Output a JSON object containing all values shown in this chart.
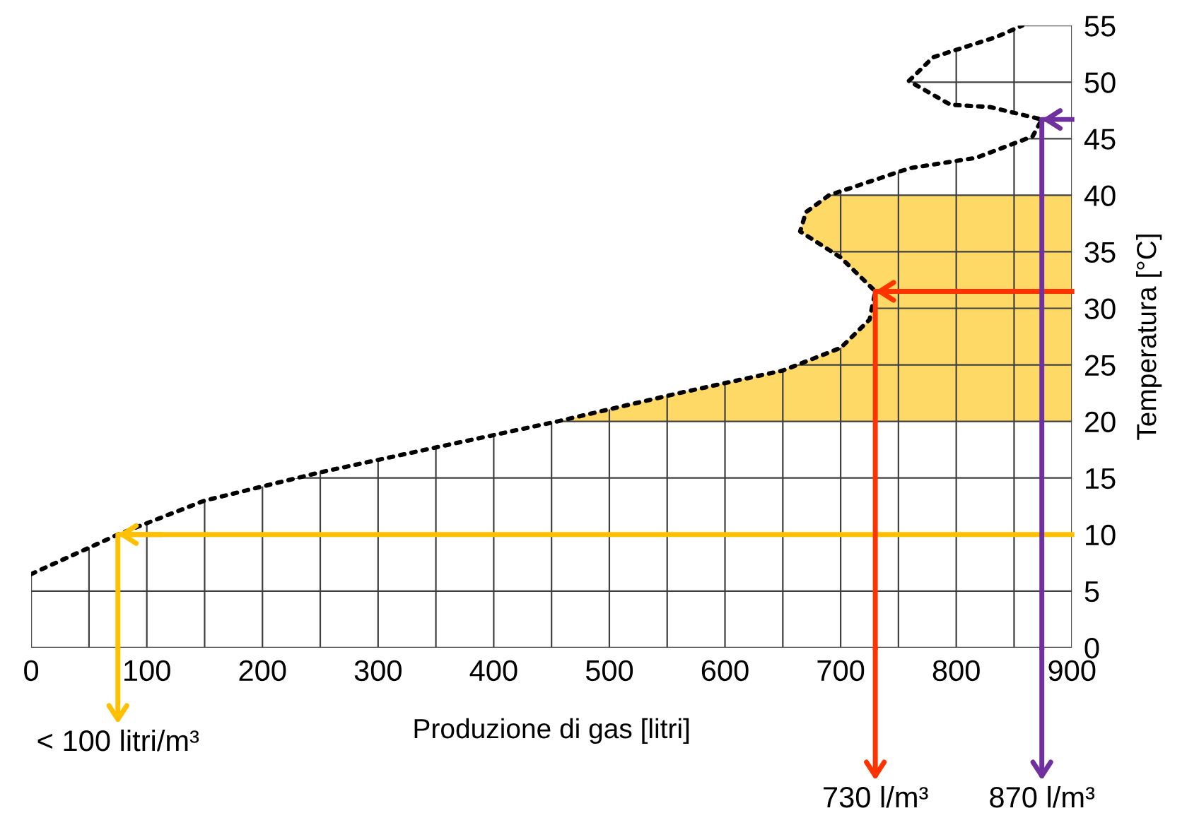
{
  "chart_data": {
    "type": "line",
    "xlabel": "Produzione di gas [litri]",
    "ylabel": "Temperatura [°C]",
    "series": [
      {
        "color": "#000000",
        "line_style": "dotted",
        "x": [
          0,
          75,
          150,
          250,
          350,
          455,
          560,
          650,
          700,
          725,
          730,
          700,
          665,
          670,
          690,
          760,
          817,
          866,
          874,
          829,
          795,
          759,
          780,
          835,
          857
        ],
        "values": [
          6.5,
          10,
          13,
          15.5,
          17.7,
          20,
          22.5,
          24.5,
          26.5,
          29,
          31.5,
          34.5,
          36.8,
          38.5,
          40,
          42.4,
          43.3,
          45.2,
          46.7,
          47.8,
          48.0,
          50.1,
          52.2,
          54,
          55
        ]
      },
      {
        "color": "#ffc000",
        "x": [
          900,
          75,
          75
        ],
        "values": [
          10,
          10,
          0
        ]
      },
      {
        "color": "#ff3300",
        "x": [
          900,
          730,
          730
        ],
        "values": [
          31.5,
          31.5,
          0
        ]
      },
      {
        "color": "#7030a0",
        "x": [
          900,
          874,
          874
        ],
        "values": [
          46.7,
          46.7,
          0
        ]
      }
    ],
    "bands": [
      {
        "axis": "y",
        "from": 20,
        "to": 40,
        "color": "#ffd966"
      }
    ],
    "xlim": [
      0,
      900
    ],
    "ylim": [
      0,
      55
    ],
    "xticks": [
      0,
      {
        "value": 50,
        "label": null
      },
      100,
      {
        "value": 150,
        "label": null
      },
      200,
      {
        "value": 250,
        "label": null
      },
      300,
      {
        "value": 350,
        "label": null
      },
      400,
      {
        "value": 450,
        "label": null
      },
      500,
      {
        "value": 550,
        "label": null
      },
      600,
      {
        "value": 650,
        "label": null
      },
      700,
      {
        "value": 750,
        "label": null
      },
      800,
      {
        "value": 850,
        "label": null
      },
      900
    ],
    "yticks": [
      0,
      5,
      10,
      15,
      20,
      25,
      30,
      35,
      40,
      45,
      50,
      55
    ],
    "grid": true,
    "annotations": [
      "< 100 litri/m³",
      "730 l/m³",
      "870 l/m³"
    ]
  }
}
